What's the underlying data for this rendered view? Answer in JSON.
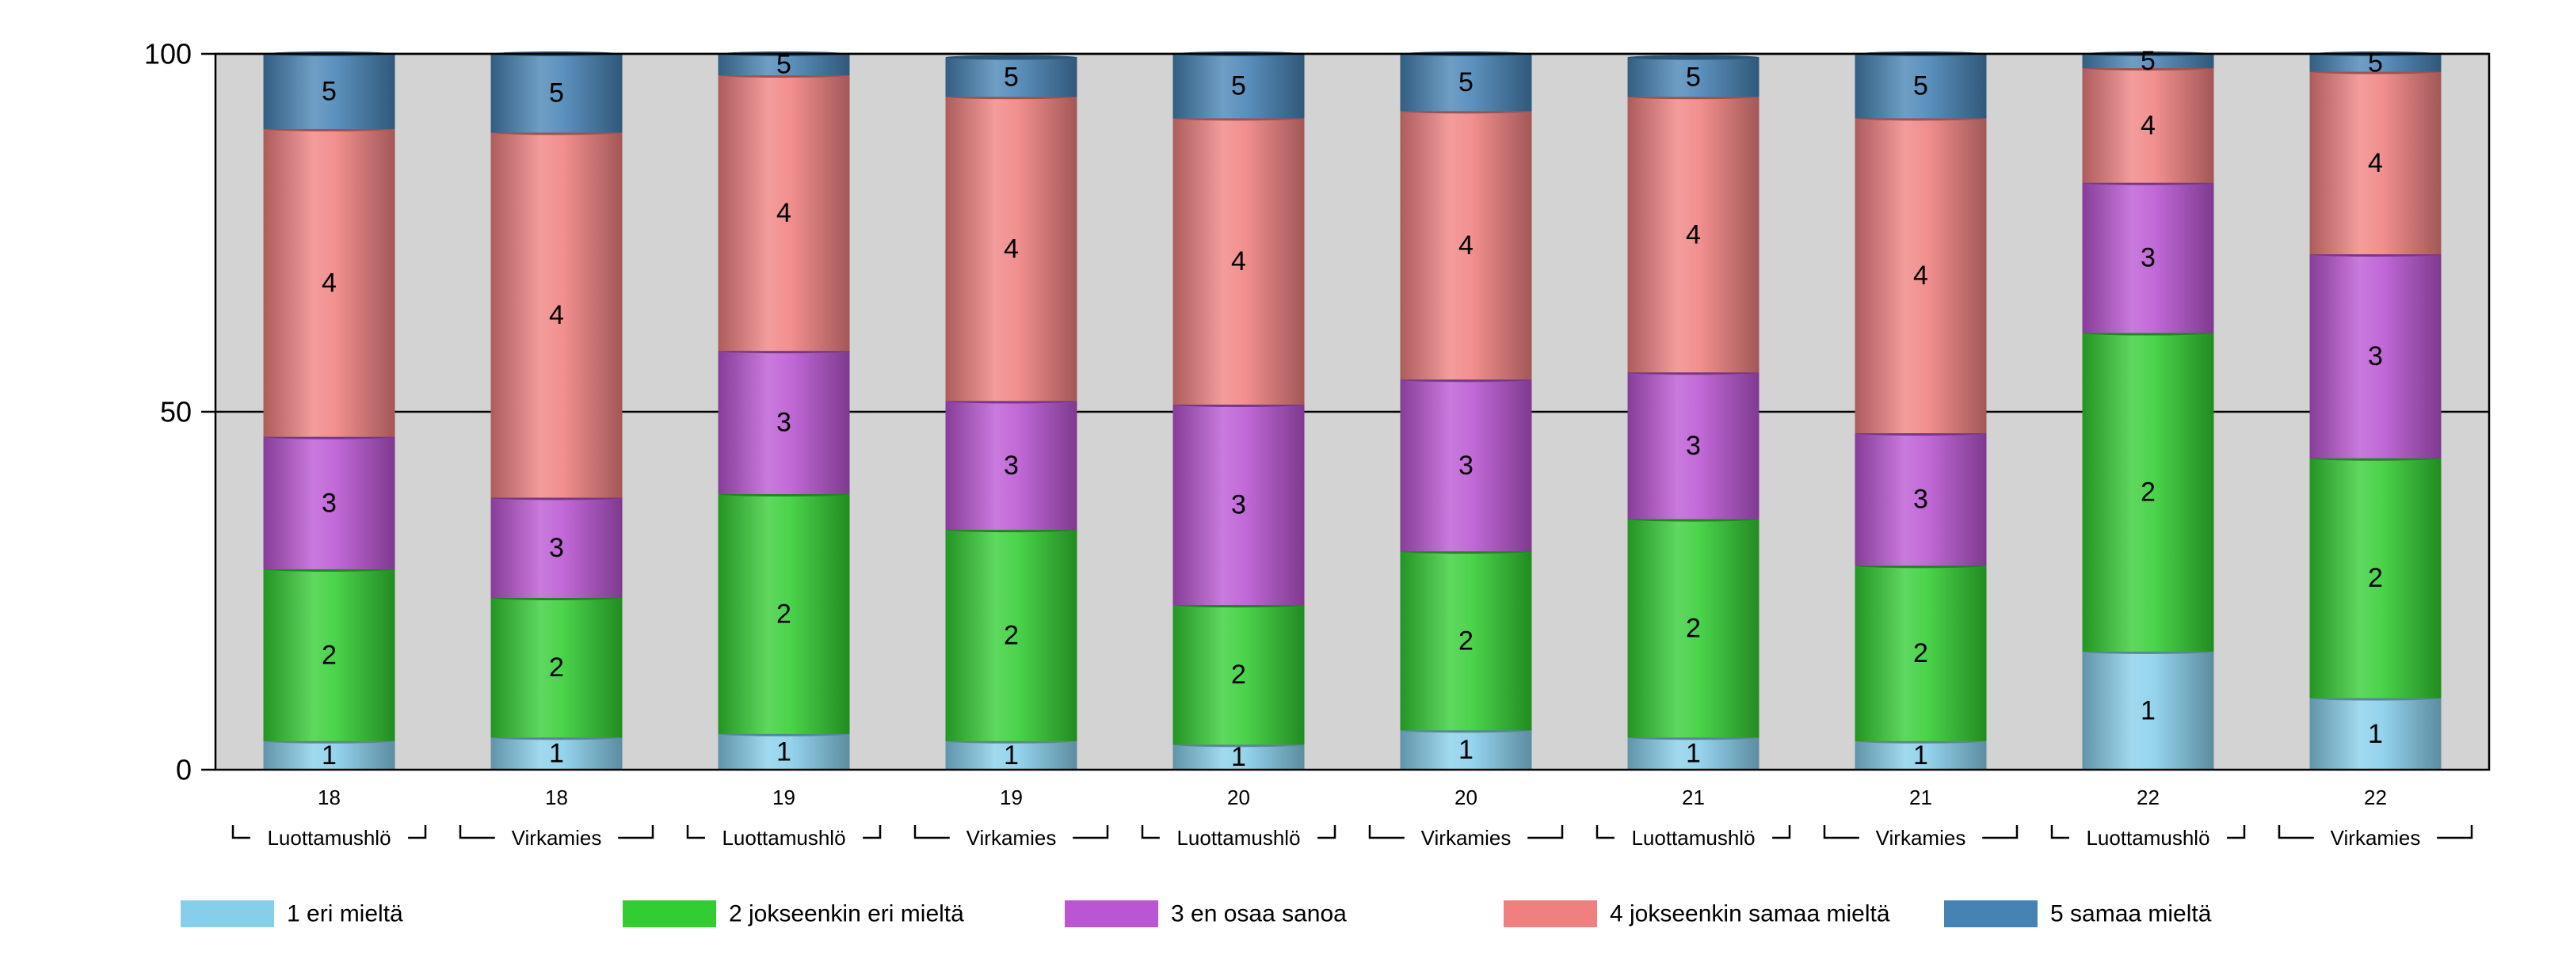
{
  "chart_data": {
    "type": "bar",
    "stacked": true,
    "ylim": [
      0,
      100
    ],
    "yticks": [
      0,
      50,
      100
    ],
    "grid": true,
    "legend_position": "bottom",
    "background": "#d3d3d3",
    "categories": [
      "18",
      "18",
      "19",
      "19",
      "20",
      "20",
      "21",
      "21",
      "22",
      "22"
    ],
    "groups": [
      "Luottamushlö",
      "Virkamies",
      "Luottamushlö",
      "Virkamies",
      "Luottamushlö",
      "Virkamies",
      "Luottamushlö",
      "Virkamies",
      "Luottamushlö",
      "Virkamies"
    ],
    "series": [
      {
        "name": "1 eri mieltä",
        "label": "1",
        "color": "#87ceeb",
        "values": [
          4,
          4.5,
          5,
          4,
          3.5,
          5.5,
          4.5,
          4,
          16.5,
          10
        ]
      },
      {
        "name": "2 jokseenkin eri mieltä",
        "label": "2",
        "color": "#32cd32",
        "values": [
          24,
          19.5,
          33.5,
          29.5,
          19.5,
          25,
          30.5,
          24.5,
          44.5,
          33.5
        ]
      },
      {
        "name": "3 en osaa sanoa",
        "label": "3",
        "color": "#ba55d3",
        "values": [
          18.5,
          14,
          20,
          18,
          28,
          24,
          20.5,
          18.5,
          21,
          28.5
        ]
      },
      {
        "name": "4 jokseenkin samaa mieltä",
        "label": "4",
        "color": "#f08080",
        "values": [
          43,
          51,
          38.5,
          42.5,
          40,
          37.5,
          38.5,
          44,
          16,
          25.5
        ]
      },
      {
        "name": "5 samaa mieltä",
        "label": "5",
        "color": "#4682b4",
        "values": [
          10.5,
          11,
          3,
          5.5,
          9,
          8,
          5.5,
          9,
          2,
          2.5
        ]
      }
    ]
  }
}
